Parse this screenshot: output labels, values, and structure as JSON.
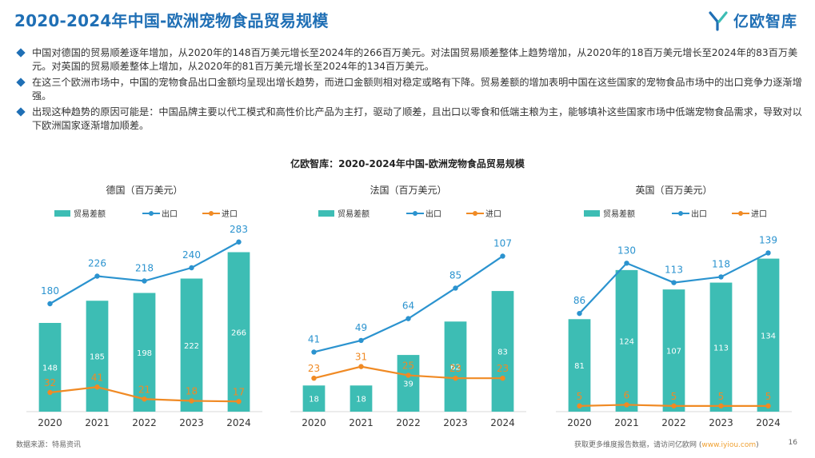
{
  "header": {
    "title": "2020-2024年中国-欧洲宠物食品贸易规模",
    "logo_text": "亿欧智库"
  },
  "bullets": [
    "中国对德国的贸易顺差逐年增加，从2020年的148百万美元增长至2024年的266百万美元。对法国贸易顺差整体上趋势增加，从2020年的18百万美元增长至2024年的83百万美元。对英国的贸易顺差整体上增加，从2020年的81百万美元增长至2024年的134百万美元。",
    "在这三个欧洲市场中，中国的宠物食品出口金额均呈现出增长趋势，而进口金额则相对稳定或略有下降。贸易差额的增加表明中国在这些国家的宠物食品市场中的出口竞争力逐渐增强。",
    "出现这种趋势的原因可能是：中国品牌主要以代工模式和高性价比产品为主打，驱动了顺差，且出口以零食和低端主粮为主，能够填补这些国家市场中低端宠物食品需求，导致对以下欧洲国家逐渐增加顺差。"
  ],
  "chart_title": "亿欧智库：2020-2024年中国-欧洲宠物食品贸易规模",
  "colors": {
    "bar": "#3dbdb4",
    "export": "#2b93cf",
    "import": "#f08a24"
  },
  "chart_data": [
    {
      "type": "bar",
      "title": "德国（百万美元）",
      "categories": [
        "2020",
        "2021",
        "2022",
        "2023",
        "2024"
      ],
      "series": [
        {
          "name": "贸易差额",
          "type": "bar",
          "values": [
            148,
            185,
            198,
            222,
            266
          ]
        },
        {
          "name": "出口",
          "type": "line",
          "values": [
            180,
            226,
            218,
            240,
            283
          ]
        },
        {
          "name": "进口",
          "type": "line",
          "values": [
            32,
            41,
            21,
            18,
            17
          ]
        }
      ],
      "legend": "top"
    },
    {
      "type": "bar",
      "title": "法国（百万美元）",
      "categories": [
        "2020",
        "2021",
        "2022",
        "2023",
        "2024"
      ],
      "series": [
        {
          "name": "贸易差额",
          "type": "bar",
          "values": [
            18,
            18,
            39,
            62,
            83
          ]
        },
        {
          "name": "出口",
          "type": "line",
          "values": [
            41,
            49,
            64,
            85,
            107
          ]
        },
        {
          "name": "进口",
          "type": "line",
          "values": [
            23,
            31,
            25,
            23,
            23
          ]
        }
      ],
      "legend": "top"
    },
    {
      "type": "bar",
      "title": "英国（百万美元）",
      "categories": [
        "2020",
        "2021",
        "2022",
        "2023",
        "2024"
      ],
      "series": [
        {
          "name": "贸易差额",
          "type": "bar",
          "values": [
            81,
            124,
            107,
            113,
            134
          ]
        },
        {
          "name": "出口",
          "type": "line",
          "values": [
            86,
            130,
            113,
            118,
            139
          ]
        },
        {
          "name": "进口",
          "type": "line",
          "values": [
            5,
            6,
            5,
            5,
            5
          ]
        }
      ],
      "legend": "top"
    }
  ],
  "footer": {
    "source": "数据来源：特易资讯",
    "more_prefix": "获取更多维度报告数据，请访问亿欧网 (",
    "more_link": "www.iyiou.com",
    "more_suffix": ")",
    "page_number": "16"
  }
}
